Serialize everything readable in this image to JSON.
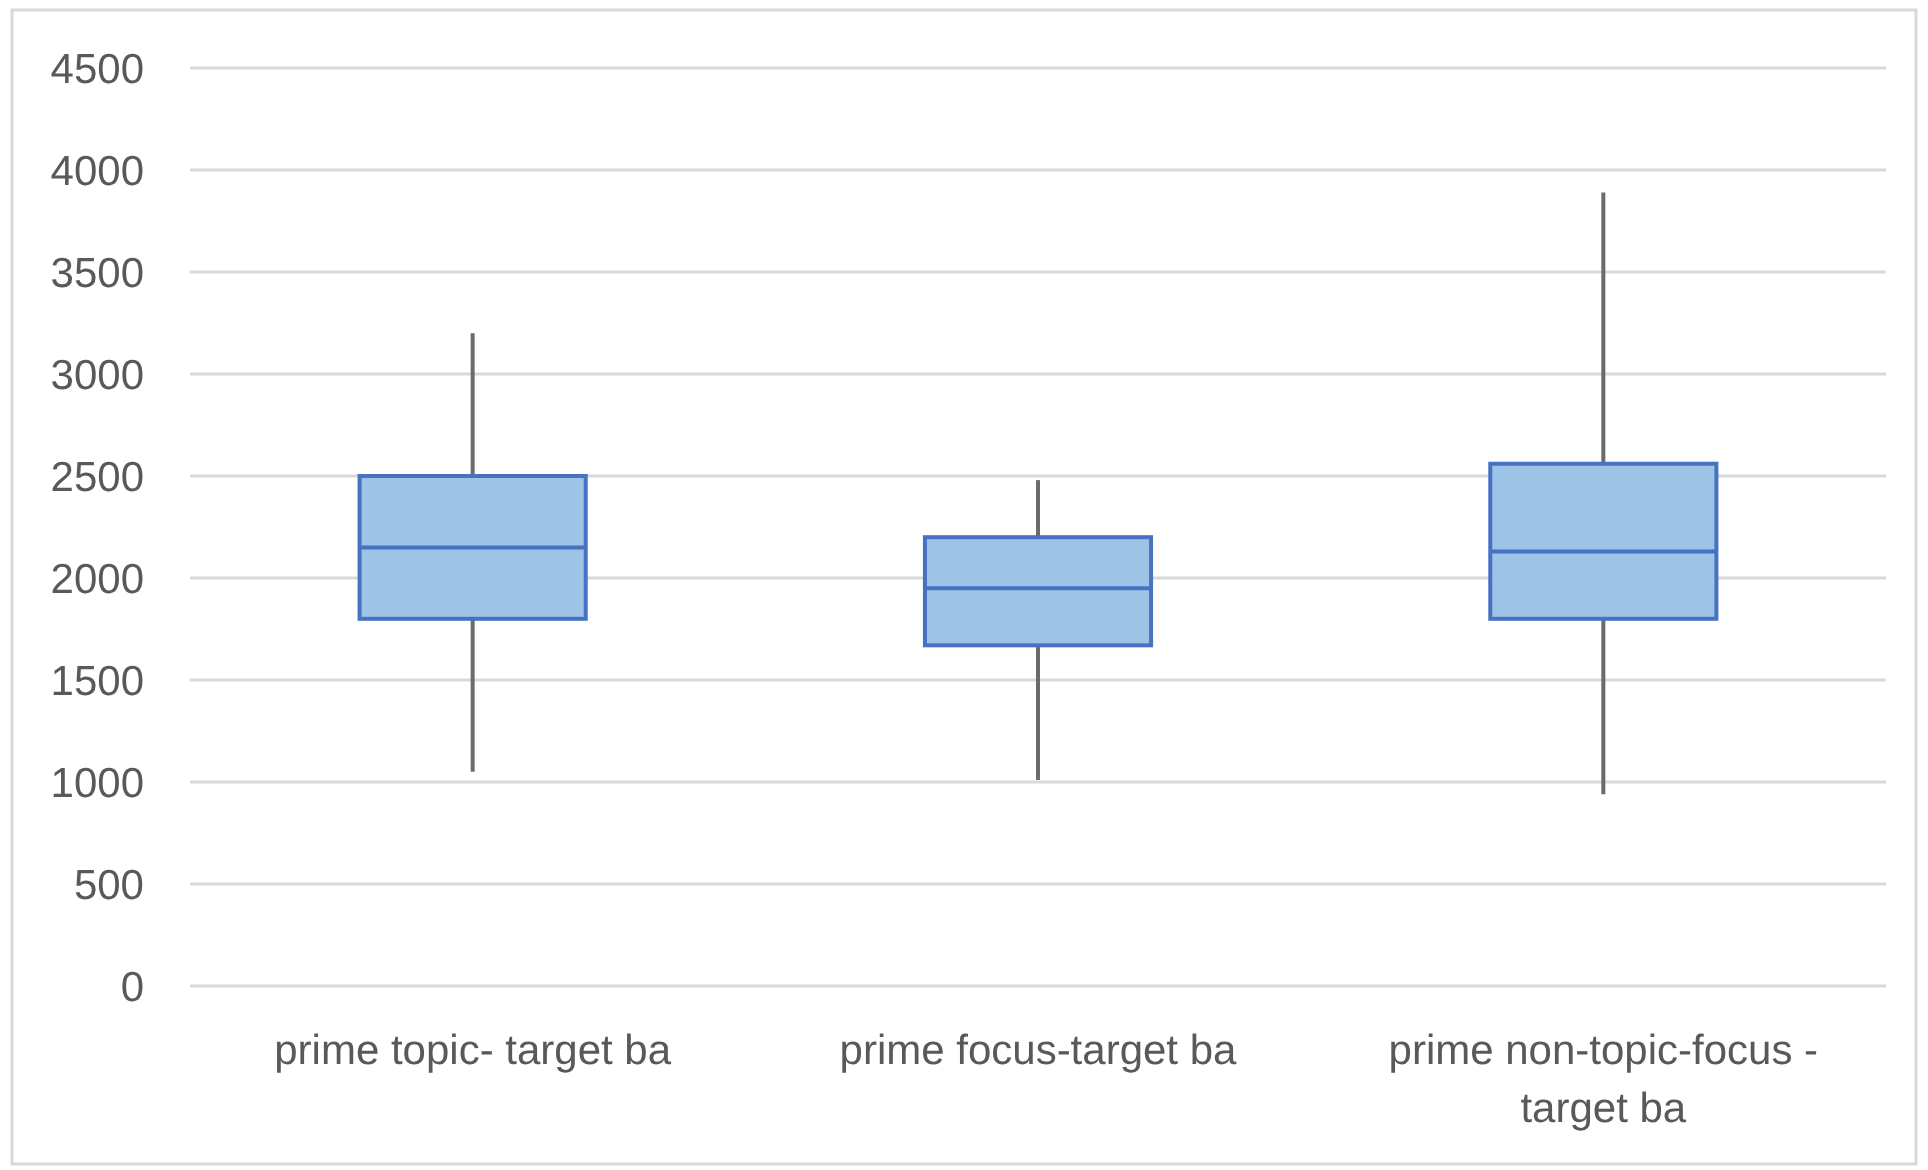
{
  "chart_data": {
    "type": "box",
    "categories": [
      "prime topic- target ba",
      "prime focus-target ba",
      "prime non-topic-focus - target ba"
    ],
    "boxes": [
      {
        "low": 1050,
        "q1": 1800,
        "median": 2150,
        "q3": 2500,
        "high": 3200
      },
      {
        "low": 1010,
        "q1": 1670,
        "median": 1950,
        "q3": 2200,
        "high": 2480
      },
      {
        "low": 940,
        "q1": 1800,
        "median": 2130,
        "q3": 2560,
        "high": 3890
      }
    ],
    "color": "#9dc3e6",
    "ylim": [
      0,
      4500
    ],
    "yticks": [
      0,
      500,
      1000,
      1500,
      2000,
      2500,
      3000,
      3500,
      4000,
      4500
    ],
    "grid": "y"
  }
}
